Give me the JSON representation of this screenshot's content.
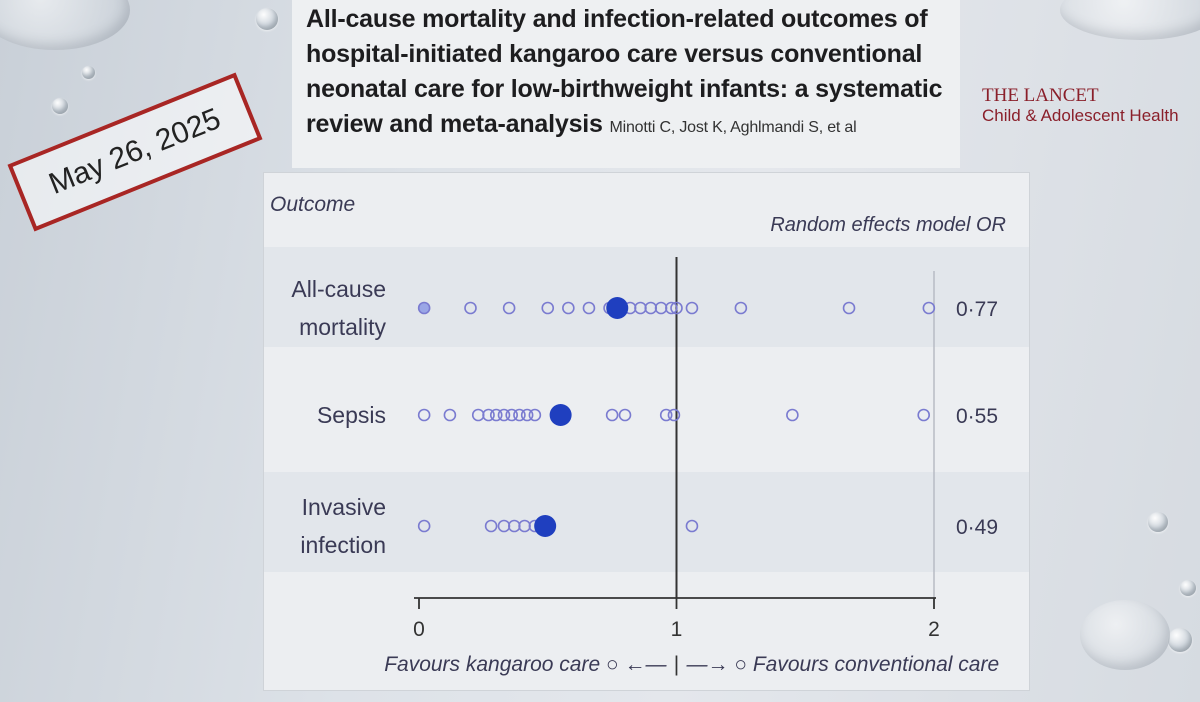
{
  "header": {
    "title": "All-cause mortality and infection-related outcomes of hospital-initiated kangaroo care versus conventional neonatal care for low-birthweight infants: a systematic review and meta-analysis",
    "authors": "Minotti C, Jost K, Aghlmandi S, et al",
    "journal_line1": "THE LANCET",
    "journal_line2": "Child & Adolescent Health",
    "date": "May 26, 2025"
  },
  "chart_data": {
    "type": "scatter",
    "column_left": "Outcome",
    "column_right": "Random effects model OR",
    "xlim": [
      0,
      2
    ],
    "xticks": [
      "0",
      "1",
      "2"
    ],
    "xtick_values": [
      0,
      1,
      2
    ],
    "reference_line": 1,
    "footer_left": "Favours kangaroo care",
    "footer_right": "Favours conventional care",
    "footer_arrow_left": "○ ←—",
    "footer_arrow_right": "—→ ○",
    "colors": {
      "pooled": "#1f3fbf",
      "study": "#7a7bd0",
      "study_fill": "#9aa6e6"
    },
    "rows": [
      {
        "outcome": "All-cause mortality",
        "label_lines": [
          "All-cause",
          "mortality"
        ],
        "pooled_or": 0.77,
        "pooled_label": "0·77",
        "studies": [
          0.02,
          0.2,
          0.35,
          0.5,
          0.58,
          0.66,
          0.74,
          0.77,
          0.82,
          0.86,
          0.9,
          0.94,
          0.98,
          1.0,
          1.06,
          1.25,
          1.67,
          1.98
        ]
      },
      {
        "outcome": "Sepsis",
        "label_lines": [
          "Sepsis"
        ],
        "pooled_or": 0.55,
        "pooled_label": "0·55",
        "studies": [
          0.02,
          0.12,
          0.23,
          0.27,
          0.3,
          0.33,
          0.36,
          0.39,
          0.42,
          0.45,
          0.75,
          0.8,
          0.96,
          0.99,
          1.45,
          1.96
        ]
      },
      {
        "outcome": "Invasive infection",
        "label_lines": [
          "Invasive",
          "infection"
        ],
        "pooled_or": 0.49,
        "pooled_label": "0·49",
        "studies": [
          0.02,
          0.28,
          0.33,
          0.37,
          0.41,
          0.45,
          1.06
        ]
      }
    ]
  }
}
